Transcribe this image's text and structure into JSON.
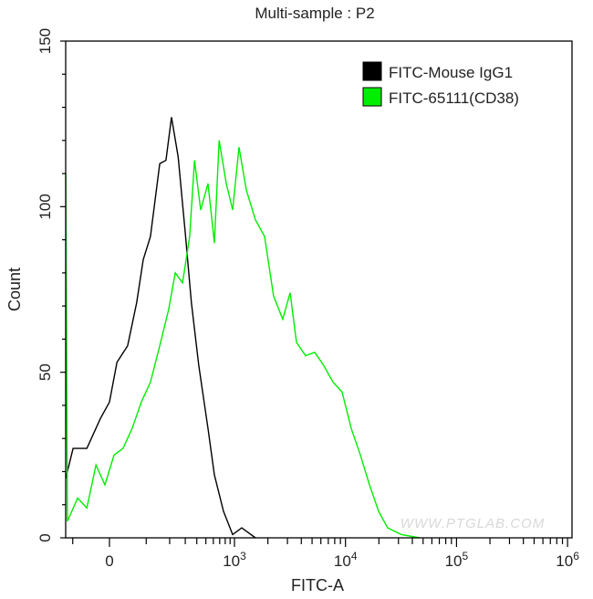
{
  "chart_data": {
    "type": "line",
    "title": "Multi-sample : P2",
    "xlabel": "FITC-A",
    "ylabel": "Count",
    "x_scale": "biexponential",
    "ylim": [
      0,
      150
    ],
    "y_ticks": [
      0,
      50,
      100,
      150
    ],
    "x_ticks": [
      {
        "value": 0,
        "base": "0",
        "exp": ""
      },
      {
        "value": 1000,
        "base": "10",
        "exp": "3"
      },
      {
        "value": 10000,
        "base": "10",
        "exp": "4"
      },
      {
        "value": 100000,
        "base": "10",
        "exp": "5"
      },
      {
        "value": 1000000,
        "base": "10",
        "exp": "6"
      }
    ],
    "grid": false,
    "legend_position": "top-right",
    "watermark": "WWW.PTGLAB.COM",
    "series": [
      {
        "name": "FITC-Mouse IgG1",
        "color": "#000000",
        "x": [
          -125,
          -99,
          -57,
          -22,
          0,
          18,
          45,
          70,
          90,
          115,
          152,
          181,
          210,
          250,
          300,
          350,
          420,
          527,
          615,
          768,
          957,
          1164,
          1545
        ],
        "y": [
          18,
          27,
          27,
          36,
          41,
          53,
          58,
          71,
          84,
          91,
          113,
          114,
          127,
          115,
          92,
          71,
          52,
          33,
          19,
          8,
          1,
          3,
          0
        ]
      },
      {
        "name": "FITC-65111(CD38)",
        "color": "#00ee00",
        "x": [
          -125,
          -119,
          -84,
          -57,
          -33,
          -11,
          11,
          33,
          57,
          84,
          115,
          152,
          195,
          232,
          280,
          335,
          378,
          440,
          527,
          615,
          690,
          820,
          957,
          1100,
          1279,
          1545,
          1866,
          2253,
          2723,
          3170,
          3620,
          4375,
          5285,
          6380,
          7710,
          9330,
          11270,
          13610,
          16440,
          19860,
          23990,
          31900,
          46560
        ],
        "y": [
          110,
          5,
          12,
          9,
          22,
          16,
          25,
          27,
          33,
          41,
          47,
          58,
          69,
          80,
          77,
          91,
          114,
          99,
          107,
          89,
          120,
          107,
          99,
          118,
          105,
          96,
          91,
          73,
          66,
          74,
          59,
          55,
          56,
          52,
          47,
          44,
          33,
          25,
          16,
          8,
          3,
          1,
          0
        ]
      }
    ]
  }
}
